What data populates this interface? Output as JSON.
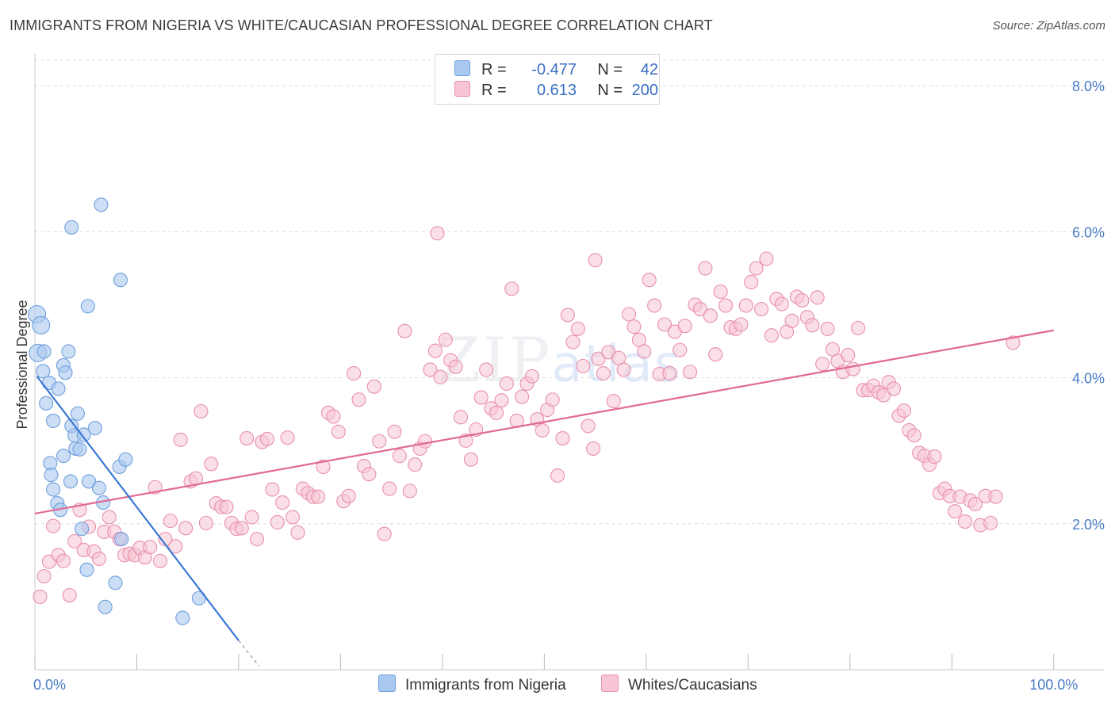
{
  "header": {
    "title": "IMMIGRANTS FROM NIGERIA VS WHITE/CAUCASIAN PROFESSIONAL DEGREE CORRELATION CHART",
    "source": "Source: ZipAtlas.com"
  },
  "watermark": {
    "zip": "ZIP",
    "atlas": "atlas"
  },
  "legend": {
    "rows": [
      {
        "r_label": "R =",
        "r_value": "-0.477",
        "n_label": "N =",
        "n_value": "42",
        "color": "#a9c8f0"
      },
      {
        "r_label": "R =",
        "r_value": "0.613",
        "n_label": "N =",
        "n_value": "200",
        "color": "#f5b8cb"
      }
    ]
  },
  "bottom_legend": [
    {
      "label": "Immigrants from Nigeria",
      "color": "#a9c8f0"
    },
    {
      "label": "Whites/Caucasians",
      "color": "#f5b8cb"
    }
  ],
  "colors": {
    "blue_fill": "#a9c8f0",
    "blue_stroke": "#6f9fdc",
    "blue_line": "#3a78d4",
    "pink_fill": "#f7c5d4",
    "pink_stroke": "#e890ab",
    "pink_line": "#e06a94",
    "grid": "#dddddd",
    "axis_text": "#4a7cc7"
  },
  "chart_data": {
    "type": "scatter",
    "title": "IMMIGRANTS FROM NIGERIA VS WHITE/CAUCASIAN PROFESSIONAL DEGREE CORRELATION CHART",
    "xlabel": "",
    "ylabel": "Professional Degree",
    "xlim": [
      0,
      105
    ],
    "ylim": [
      0,
      8.35
    ],
    "x_tick_labels": [
      {
        "value": 0,
        "label": "0.0%"
      },
      {
        "value": 100,
        "label": "100.0%"
      }
    ],
    "y_ticks": [
      {
        "value": 2,
        "label": "2.0%"
      },
      {
        "value": 4,
        "label": "4.0%"
      },
      {
        "value": 6,
        "label": "6.0%"
      },
      {
        "value": 8,
        "label": "8.0%"
      }
    ],
    "x_minor_ticks": [
      0,
      10,
      20,
      30,
      40,
      50,
      60,
      70,
      80,
      90,
      100
    ],
    "series": [
      {
        "name": "Immigrants from Nigeria",
        "r": -0.477,
        "n": 42,
        "trend": {
          "x0": 0.2,
          "y0": 4.02,
          "x1": 20.0,
          "y1": 0.4,
          "dash_x1": 22.0,
          "dash_y1": 0.05
        },
        "points": [
          [
            0.2,
            4.87
          ],
          [
            0.6,
            4.72
          ],
          [
            0.3,
            4.34
          ],
          [
            0.9,
            4.36
          ],
          [
            0.8,
            4.09
          ],
          [
            1.1,
            3.65
          ],
          [
            1.4,
            3.93
          ],
          [
            2.3,
            3.85
          ],
          [
            2.8,
            4.17
          ],
          [
            3.0,
            4.07
          ],
          [
            3.3,
            4.36
          ],
          [
            1.8,
            3.41
          ],
          [
            3.6,
            3.34
          ],
          [
            4.2,
            3.51
          ],
          [
            3.9,
            3.21
          ],
          [
            4.8,
            3.22
          ],
          [
            5.9,
            3.31
          ],
          [
            4.0,
            3.03
          ],
          [
            4.4,
            3.02
          ],
          [
            2.8,
            2.93
          ],
          [
            1.5,
            2.83
          ],
          [
            1.6,
            2.67
          ],
          [
            3.5,
            2.58
          ],
          [
            5.3,
            2.58
          ],
          [
            8.3,
            2.78
          ],
          [
            8.9,
            2.88
          ],
          [
            1.8,
            2.47
          ],
          [
            6.3,
            2.49
          ],
          [
            2.2,
            2.28
          ],
          [
            2.5,
            2.19
          ],
          [
            6.7,
            2.29
          ],
          [
            4.6,
            1.93
          ],
          [
            8.5,
            1.79
          ],
          [
            5.1,
            1.37
          ],
          [
            7.9,
            1.19
          ],
          [
            6.9,
            0.86
          ],
          [
            16.1,
            0.98
          ],
          [
            14.5,
            0.71
          ],
          [
            3.6,
            6.06
          ],
          [
            6.5,
            6.37
          ],
          [
            8.4,
            5.34
          ],
          [
            5.2,
            4.98
          ]
        ]
      },
      {
        "name": "Whites/Caucasians",
        "r": 0.613,
        "n": 200,
        "trend": {
          "x0": 0,
          "y0": 2.14,
          "x1": 100,
          "y1": 4.65
        },
        "points": [
          [
            0.5,
            1.0
          ],
          [
            0.9,
            1.28
          ],
          [
            1.4,
            1.48
          ],
          [
            1.8,
            1.97
          ],
          [
            2.3,
            1.57
          ],
          [
            2.8,
            1.49
          ],
          [
            3.4,
            1.02
          ],
          [
            3.9,
            1.76
          ],
          [
            4.4,
            2.19
          ],
          [
            4.8,
            1.64
          ],
          [
            5.3,
            1.96
          ],
          [
            5.8,
            1.62
          ],
          [
            6.3,
            1.52
          ],
          [
            6.8,
            1.89
          ],
          [
            7.3,
            2.09
          ],
          [
            7.8,
            1.89
          ],
          [
            8.3,
            1.79
          ],
          [
            8.8,
            1.57
          ],
          [
            9.3,
            1.59
          ],
          [
            9.8,
            1.57
          ],
          [
            10.3,
            1.67
          ],
          [
            10.8,
            1.54
          ],
          [
            11.3,
            1.68
          ],
          [
            11.8,
            2.5
          ],
          [
            12.3,
            1.49
          ],
          [
            12.8,
            1.79
          ],
          [
            13.3,
            2.04
          ],
          [
            13.8,
            1.69
          ],
          [
            14.3,
            3.15
          ],
          [
            14.8,
            1.94
          ],
          [
            15.3,
            2.58
          ],
          [
            15.8,
            2.62
          ],
          [
            16.3,
            3.54
          ],
          [
            16.8,
            2.01
          ],
          [
            17.3,
            2.82
          ],
          [
            17.8,
            2.28
          ],
          [
            18.3,
            2.23
          ],
          [
            18.8,
            2.23
          ],
          [
            19.3,
            2.01
          ],
          [
            19.8,
            1.93
          ],
          [
            20.3,
            1.94
          ],
          [
            20.8,
            3.17
          ],
          [
            21.3,
            2.09
          ],
          [
            21.8,
            1.79
          ],
          [
            22.3,
            3.12
          ],
          [
            22.8,
            3.16
          ],
          [
            23.3,
            2.47
          ],
          [
            23.8,
            2.02
          ],
          [
            24.3,
            2.29
          ],
          [
            24.8,
            3.18
          ],
          [
            25.3,
            2.09
          ],
          [
            25.8,
            1.88
          ],
          [
            26.3,
            2.48
          ],
          [
            26.8,
            2.42
          ],
          [
            27.3,
            2.37
          ],
          [
            27.8,
            2.37
          ],
          [
            28.3,
            2.78
          ],
          [
            28.8,
            3.52
          ],
          [
            29.3,
            3.47
          ],
          [
            29.8,
            3.26
          ],
          [
            30.3,
            2.31
          ],
          [
            30.8,
            2.38
          ],
          [
            31.3,
            4.06
          ],
          [
            31.8,
            3.7
          ],
          [
            32.3,
            2.79
          ],
          [
            32.8,
            2.68
          ],
          [
            33.3,
            3.88
          ],
          [
            33.8,
            3.13
          ],
          [
            34.3,
            1.86
          ],
          [
            34.8,
            2.48
          ],
          [
            35.3,
            3.26
          ],
          [
            35.8,
            2.93
          ],
          [
            36.3,
            4.64
          ],
          [
            36.8,
            2.45
          ],
          [
            37.3,
            2.81
          ],
          [
            37.8,
            3.03
          ],
          [
            38.3,
            3.13
          ],
          [
            38.8,
            4.11
          ],
          [
            39.3,
            4.37
          ],
          [
            39.8,
            4.01
          ],
          [
            40.3,
            4.52
          ],
          [
            40.8,
            4.24
          ],
          [
            41.3,
            4.15
          ],
          [
            41.8,
            3.46
          ],
          [
            42.3,
            3.14
          ],
          [
            42.8,
            2.88
          ],
          [
            43.3,
            3.29
          ],
          [
            43.8,
            3.73
          ],
          [
            44.3,
            4.11
          ],
          [
            44.8,
            3.58
          ],
          [
            45.3,
            3.52
          ],
          [
            45.8,
            3.69
          ],
          [
            46.3,
            3.92
          ],
          [
            46.8,
            5.22
          ],
          [
            47.3,
            3.41
          ],
          [
            47.8,
            3.74
          ],
          [
            48.3,
            3.92
          ],
          [
            48.8,
            4.02
          ],
          [
            49.3,
            3.43
          ],
          [
            49.8,
            3.28
          ],
          [
            50.3,
            3.56
          ],
          [
            50.8,
            3.7
          ],
          [
            51.3,
            2.66
          ],
          [
            51.8,
            3.17
          ],
          [
            52.3,
            4.86
          ],
          [
            52.8,
            4.49
          ],
          [
            53.3,
            4.67
          ],
          [
            53.8,
            4.16
          ],
          [
            54.3,
            3.34
          ],
          [
            54.8,
            3.03
          ],
          [
            55.3,
            4.26
          ],
          [
            55.8,
            4.06
          ],
          [
            56.3,
            4.35
          ],
          [
            56.8,
            3.68
          ],
          [
            57.3,
            4.27
          ],
          [
            57.8,
            4.11
          ],
          [
            58.3,
            4.87
          ],
          [
            58.8,
            4.7
          ],
          [
            59.3,
            4.52
          ],
          [
            59.8,
            4.36
          ],
          [
            60.3,
            5.34
          ],
          [
            60.8,
            4.99
          ],
          [
            61.3,
            4.05
          ],
          [
            61.8,
            4.73
          ],
          [
            62.3,
            4.06
          ],
          [
            62.8,
            4.63
          ],
          [
            63.3,
            4.38
          ],
          [
            63.8,
            4.71
          ],
          [
            64.3,
            4.08
          ],
          [
            64.8,
            5.0
          ],
          [
            65.3,
            4.94
          ],
          [
            65.8,
            5.5
          ],
          [
            66.3,
            4.85
          ],
          [
            66.8,
            4.32
          ],
          [
            67.3,
            5.18
          ],
          [
            67.8,
            4.99
          ],
          [
            68.3,
            4.69
          ],
          [
            68.8,
            4.67
          ],
          [
            69.3,
            4.73
          ],
          [
            69.8,
            4.99
          ],
          [
            70.3,
            5.31
          ],
          [
            70.8,
            5.5
          ],
          [
            71.3,
            4.94
          ],
          [
            71.8,
            5.63
          ],
          [
            72.3,
            4.58
          ],
          [
            72.8,
            5.08
          ],
          [
            73.3,
            5.01
          ],
          [
            73.8,
            4.63
          ],
          [
            74.3,
            4.78
          ],
          [
            74.8,
            5.11
          ],
          [
            75.3,
            5.06
          ],
          [
            75.8,
            4.83
          ],
          [
            76.3,
            4.72
          ],
          [
            76.8,
            5.1
          ],
          [
            77.3,
            4.19
          ],
          [
            77.8,
            4.67
          ],
          [
            78.3,
            4.39
          ],
          [
            78.8,
            4.23
          ],
          [
            79.3,
            4.08
          ],
          [
            79.8,
            4.31
          ],
          [
            80.3,
            4.12
          ],
          [
            80.8,
            4.68
          ],
          [
            81.3,
            3.83
          ],
          [
            81.8,
            3.83
          ],
          [
            82.3,
            3.89
          ],
          [
            82.8,
            3.8
          ],
          [
            83.3,
            3.76
          ],
          [
            83.8,
            3.94
          ],
          [
            84.3,
            3.85
          ],
          [
            84.8,
            3.48
          ],
          [
            85.3,
            3.55
          ],
          [
            85.8,
            3.28
          ],
          [
            86.3,
            3.21
          ],
          [
            86.8,
            2.97
          ],
          [
            87.3,
            2.93
          ],
          [
            87.8,
            2.81
          ],
          [
            88.3,
            2.92
          ],
          [
            88.8,
            2.42
          ],
          [
            89.3,
            2.48
          ],
          [
            89.8,
            2.38
          ],
          [
            90.3,
            2.17
          ],
          [
            90.8,
            2.37
          ],
          [
            91.3,
            2.03
          ],
          [
            91.8,
            2.32
          ],
          [
            92.3,
            2.27
          ],
          [
            92.8,
            1.98
          ],
          [
            93.3,
            2.38
          ],
          [
            93.8,
            2.01
          ],
          [
            94.3,
            2.37
          ],
          [
            96.0,
            4.48
          ],
          [
            39.5,
            5.98
          ],
          [
            55.0,
            5.61
          ]
        ]
      }
    ]
  }
}
